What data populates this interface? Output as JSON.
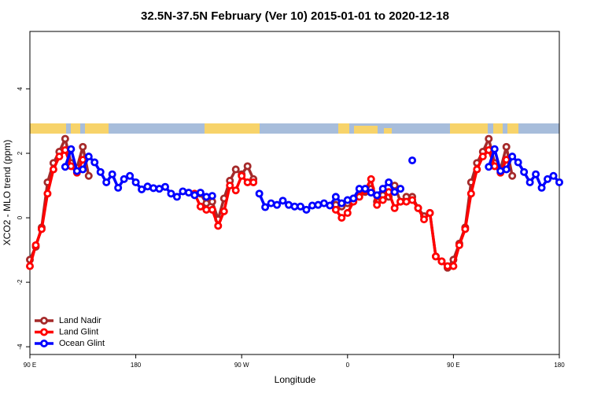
{
  "chart_data": {
    "type": "line",
    "title": "32.5N-37.5N February (Ver 10)   2015-01-01 to 2020-12-18",
    "x_label": "Longitude",
    "y_label": "XCO2 - MLO trend (ppm)",
    "x": [
      90,
      95,
      100,
      105,
      110,
      115,
      120,
      125,
      130,
      135,
      140,
      145,
      150,
      155,
      160,
      165,
      170,
      175,
      180,
      185,
      190,
      195,
      200,
      205,
      210,
      215,
      220,
      225,
      230,
      235,
      240,
      245,
      250,
      255,
      260,
      265,
      270,
      275,
      280,
      285,
      290,
      295,
      300,
      305,
      310,
      315,
      320,
      325,
      330,
      335,
      340,
      345,
      350,
      355,
      360,
      365,
      370,
      375,
      380,
      385,
      390,
      395,
      400,
      405,
      410,
      415,
      420,
      425,
      430,
      435,
      440,
      445,
      450,
      455,
      460,
      465,
      470,
      475,
      480,
      485,
      490,
      495,
      500,
      505,
      510,
      515,
      520,
      525,
      530,
      535,
      540
    ],
    "xlim": [
      90,
      540
    ],
    "xticks": [
      {
        "value": 90,
        "label": "90 E"
      },
      {
        "value": 180,
        "label": "180"
      },
      {
        "value": 270,
        "label": "90 W"
      },
      {
        "value": 360,
        "label": "0"
      },
      {
        "value": 450,
        "label": "90 E"
      },
      {
        "value": 540,
        "label": "180"
      }
    ],
    "ylim": [
      -4.24,
      5.78
    ],
    "yticks": [
      -4,
      -2,
      0,
      2,
      4
    ],
    "legend": "bottomleft",
    "series": [
      {
        "name": "Land Nadir",
        "color": "#a52a2a",
        "values": [
          -1.3,
          -0.9,
          -0.3,
          1.1,
          1.7,
          2.05,
          2.45,
          1.7,
          1.55,
          2.2,
          1.3,
          null,
          null,
          null,
          null,
          null,
          null,
          null,
          null,
          null,
          null,
          null,
          null,
          null,
          null,
          null,
          null,
          null,
          null,
          0.75,
          0.45,
          0.5,
          -0.05,
          0.6,
          1.15,
          1.5,
          1.35,
          1.6,
          1.2,
          null,
          null,
          null,
          null,
          null,
          null,
          null,
          null,
          null,
          null,
          null,
          null,
          null,
          0.4,
          0.35,
          0.45,
          0.6,
          0.7,
          0.8,
          0.9,
          0.5,
          0.7,
          0.65,
          1.0,
          0.5,
          0.65,
          0.65,
          0.3,
          0.05,
          0.15,
          -1.2,
          -1.35,
          -1.55,
          -1.3,
          -0.8,
          -0.3,
          1.1,
          1.7,
          2.05,
          2.45,
          1.7,
          1.5,
          2.2,
          1.3,
          null,
          null,
          null,
          null,
          null,
          null,
          null,
          null
        ]
      },
      {
        "name": "Land Glint",
        "color": "#ff0000",
        "values": [
          -1.5,
          -0.85,
          -0.35,
          0.75,
          1.5,
          1.9,
          2.1,
          1.6,
          1.4,
          1.8,
          null,
          null,
          null,
          null,
          null,
          null,
          null,
          null,
          null,
          null,
          null,
          null,
          null,
          null,
          null,
          null,
          null,
          null,
          0.75,
          0.35,
          0.25,
          0.25,
          -0.25,
          0.2,
          1.0,
          0.85,
          1.3,
          1.1,
          1.1,
          null,
          null,
          null,
          null,
          null,
          null,
          null,
          null,
          null,
          null,
          null,
          null,
          null,
          0.25,
          0,
          0.15,
          0.5,
          0.65,
          0.85,
          1.2,
          0.4,
          0.55,
          0.8,
          0.3,
          0.5,
          0.5,
          0.55,
          0.3,
          -0.05,
          0.15,
          -1.2,
          -1.35,
          -1.5,
          -1.5,
          -0.85,
          -0.35,
          0.75,
          1.5,
          1.9,
          2.1,
          1.6,
          1.4,
          1.8,
          null,
          null,
          null,
          null,
          null,
          null,
          null,
          null,
          null
        ]
      },
      {
        "name": "Ocean Glint",
        "color": "#0000ff",
        "values": [
          null,
          null,
          null,
          null,
          null,
          null,
          1.58,
          2.13,
          1.45,
          1.5,
          1.9,
          1.72,
          1.42,
          1.1,
          1.35,
          0.93,
          1.2,
          1.3,
          1.1,
          0.88,
          0.97,
          0.92,
          0.9,
          0.96,
          0.75,
          0.65,
          0.82,
          0.78,
          0.7,
          0.78,
          0.65,
          0.68,
          null,
          null,
          null,
          null,
          null,
          null,
          null,
          0.75,
          0.33,
          0.45,
          0.4,
          0.53,
          0.4,
          0.35,
          0.35,
          0.25,
          0.38,
          0.4,
          0.45,
          0.38,
          0.65,
          0.45,
          0.55,
          0.6,
          0.9,
          0.9,
          0.78,
          0.7,
          0.9,
          1.1,
          0.8,
          0.9,
          null,
          1.78,
          null,
          null,
          null,
          null,
          null,
          null,
          null,
          null,
          null,
          null,
          null,
          null,
          1.58,
          2.13,
          1.45,
          1.5,
          1.9,
          1.72,
          1.42,
          1.1,
          1.35,
          0.93,
          1.2,
          1.3,
          1.1
        ]
      }
    ]
  }
}
